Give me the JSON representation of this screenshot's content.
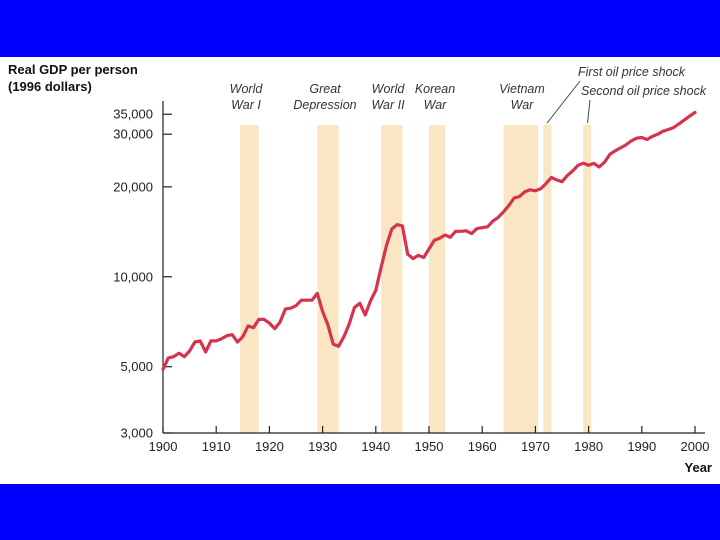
{
  "colors": {
    "frame": "#0000ff",
    "background": "#ffffff",
    "line": "#d6334f",
    "shade": "#fbe6c4",
    "axis": "#222222"
  },
  "chart_data": {
    "type": "line",
    "title": "",
    "ylabel": "Real GDP per person\n(1996 dollars)",
    "xlabel": "Year",
    "y_scale": "log",
    "xlim": [
      1900,
      2000
    ],
    "ylim": [
      3000,
      37000
    ],
    "x_ticks": [
      1900,
      1910,
      1920,
      1930,
      1940,
      1950,
      1960,
      1970,
      1980,
      1990,
      2000
    ],
    "x_tick_labels": [
      "1900",
      "1910",
      "1920",
      "1930",
      "1940",
      "1950",
      "1960",
      "1970",
      "1980",
      "1990",
      "2000"
    ],
    "y_ticks": [
      3000,
      5000,
      10000,
      20000,
      30000,
      35000
    ],
    "y_tick_labels": [
      "3,000",
      "5,000",
      "10,000",
      "20,000",
      "30,000",
      "35,000"
    ],
    "grid": false,
    "series": [
      {
        "name": "Real GDP per person",
        "x": [
          1900,
          1901,
          1902,
          1903,
          1904,
          1905,
          1906,
          1907,
          1908,
          1909,
          1910,
          1911,
          1912,
          1913,
          1914,
          1915,
          1916,
          1917,
          1918,
          1919,
          1920,
          1921,
          1922,
          1923,
          1924,
          1925,
          1926,
          1927,
          1928,
          1929,
          1930,
          1931,
          1932,
          1933,
          1934,
          1935,
          1936,
          1937,
          1938,
          1939,
          1940,
          1941,
          1942,
          1943,
          1944,
          1945,
          1946,
          1947,
          1948,
          1949,
          1950,
          1951,
          1952,
          1953,
          1954,
          1955,
          1956,
          1957,
          1958,
          1959,
          1960,
          1961,
          1962,
          1963,
          1964,
          1965,
          1966,
          1967,
          1968,
          1969,
          1970,
          1971,
          1972,
          1973,
          1974,
          1975,
          1976,
          1977,
          1978,
          1979,
          1980,
          1981,
          1982,
          1983,
          1984,
          1985,
          1986,
          1987,
          1988,
          1989,
          1990,
          1991,
          1992,
          1993,
          1994,
          1995,
          1996,
          1997,
          1998,
          1999,
          2000
        ],
        "values": [
          4900,
          5350,
          5400,
          5550,
          5400,
          5650,
          6050,
          6100,
          5600,
          6100,
          6100,
          6200,
          6350,
          6400,
          6050,
          6300,
          6850,
          6750,
          7200,
          7200,
          7000,
          6700,
          7050,
          7800,
          7850,
          8000,
          8350,
          8350,
          8350,
          8800,
          7650,
          6900,
          5950,
          5850,
          6300,
          6950,
          7900,
          8150,
          7450,
          8300,
          9000,
          10750,
          12700,
          14450,
          14950,
          14800,
          11900,
          11500,
          11800,
          11600,
          12400,
          13250,
          13450,
          13800,
          13550,
          14200,
          14200,
          14250,
          13950,
          14500,
          14600,
          14700,
          15350,
          15800,
          16500,
          17300,
          18350,
          18550,
          19250,
          19550,
          19400,
          19700,
          20500,
          21500,
          21100,
          20800,
          21800,
          22600,
          23600,
          24000,
          23600,
          23950,
          23300,
          24200,
          25700,
          26400,
          27000,
          27600,
          28500,
          29100,
          29250,
          28800,
          29500,
          30000,
          30700,
          31100,
          31600,
          32500,
          33500,
          34500,
          35500
        ]
      }
    ],
    "shaded_periods": [
      {
        "start": 1914.5,
        "end": 1918,
        "label": "World\nWar I"
      },
      {
        "start": 1929,
        "end": 1933,
        "label": "Great\nDepression"
      },
      {
        "start": 1941,
        "end": 1945,
        "label": "World\nWar II"
      },
      {
        "start": 1950,
        "end": 1953,
        "label": "Korean\nWar"
      },
      {
        "start": 1964,
        "end": 1970.5,
        "label": "Vietnam\nWar"
      },
      {
        "start": 1971.5,
        "end": 1973,
        "label": "First oil price shock"
      },
      {
        "start": 1979,
        "end": 1980.5,
        "label": "Second oil price shock"
      }
    ]
  }
}
